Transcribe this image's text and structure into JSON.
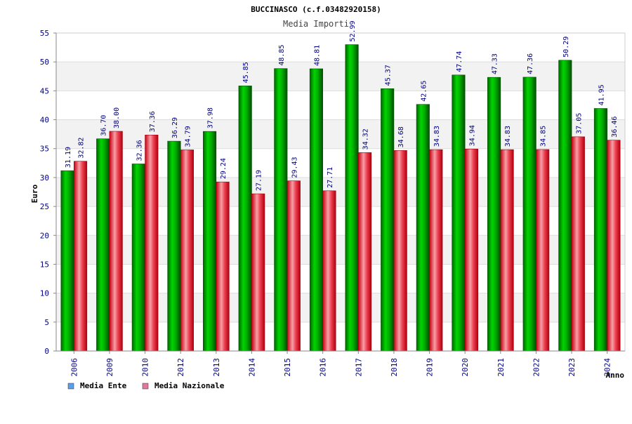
{
  "chart_data": {
    "type": "bar",
    "title": "BUCCINASCO (c.f.03482920158)",
    "subtitle": "Media Importi",
    "ylabel": "Euro",
    "xlabel": "Anno",
    "ylim": [
      0,
      55
    ],
    "yticks": [
      0,
      5,
      10,
      15,
      20,
      25,
      30,
      35,
      40,
      45,
      50,
      55
    ],
    "grid": true,
    "legend_position": "bottom-left",
    "categories": [
      "2006",
      "2009",
      "2010",
      "2012",
      "2013",
      "2014",
      "2015",
      "2016",
      "2017",
      "2018",
      "2019",
      "2020",
      "2021",
      "2022",
      "2023",
      "2024"
    ],
    "series": [
      {
        "name": "Media Ente",
        "legend_color": "#5aa0e6",
        "bar_color": "#00b800",
        "values": [
          31.19,
          36.7,
          32.36,
          36.29,
          37.98,
          45.85,
          48.85,
          48.81,
          52.99,
          45.37,
          42.65,
          47.74,
          47.33,
          47.36,
          50.29,
          41.95
        ],
        "labels": [
          "31.19",
          "36.70",
          "32.36",
          "36.29",
          "37.98",
          "45.85",
          "48.85",
          "48.81",
          "52.99",
          "45.37",
          "42.65",
          "47.74",
          "47.33",
          "47.36",
          "50.29",
          "41.95"
        ]
      },
      {
        "name": "Media Nazionale",
        "legend_color": "#e07a9a",
        "bar_color": "#e8202a",
        "values": [
          32.82,
          38.0,
          37.36,
          34.79,
          29.24,
          27.19,
          29.43,
          27.71,
          34.32,
          34.68,
          34.83,
          34.94,
          34.83,
          34.85,
          37.05,
          36.46
        ],
        "labels": [
          "32.82",
          "38.00",
          "37.36",
          "34.79",
          "29.24",
          "27.19",
          "29.43",
          "27.71",
          "34.32",
          "34.68",
          "34.83",
          "34.94",
          "34.83",
          "34.85",
          "37.05",
          "36.46"
        ]
      }
    ]
  }
}
